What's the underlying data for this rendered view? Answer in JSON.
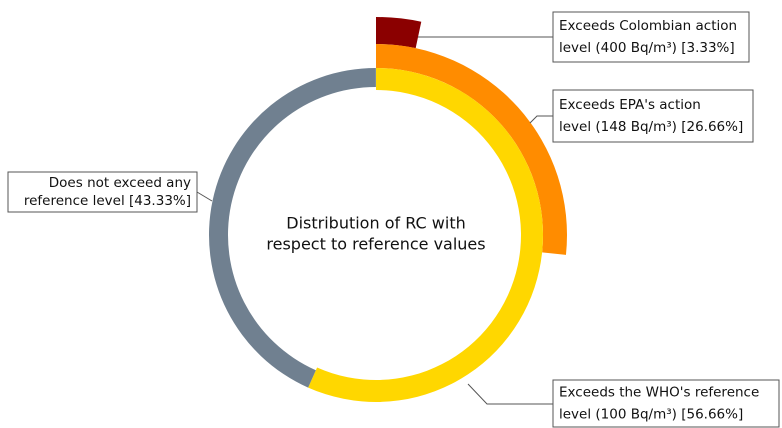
{
  "chart_data": {
    "type": "radial_bar",
    "center_text": [
      "Distribution of RC with",
      "respect to reference values"
    ],
    "categories": [
      [
        "Exceeds Colombian action",
        "level (400 Bq/m³) [3.33%]"
      ],
      [
        "Exceeds EPA's action",
        "level (148 Bq/m³) [26.66%]"
      ],
      [
        "Exceeds the WHO's reference",
        "level (100 Bq/m³) [56.66%]"
      ],
      [
        "Does not exceed any",
        "reference level [43.33%]"
      ]
    ],
    "values": [
      3.33,
      26.66,
      56.66,
      43.33
    ],
    "colors": [
      "#8b0000",
      "#ff8c00",
      "#ffd700",
      "#708090"
    ],
    "total": 100
  }
}
